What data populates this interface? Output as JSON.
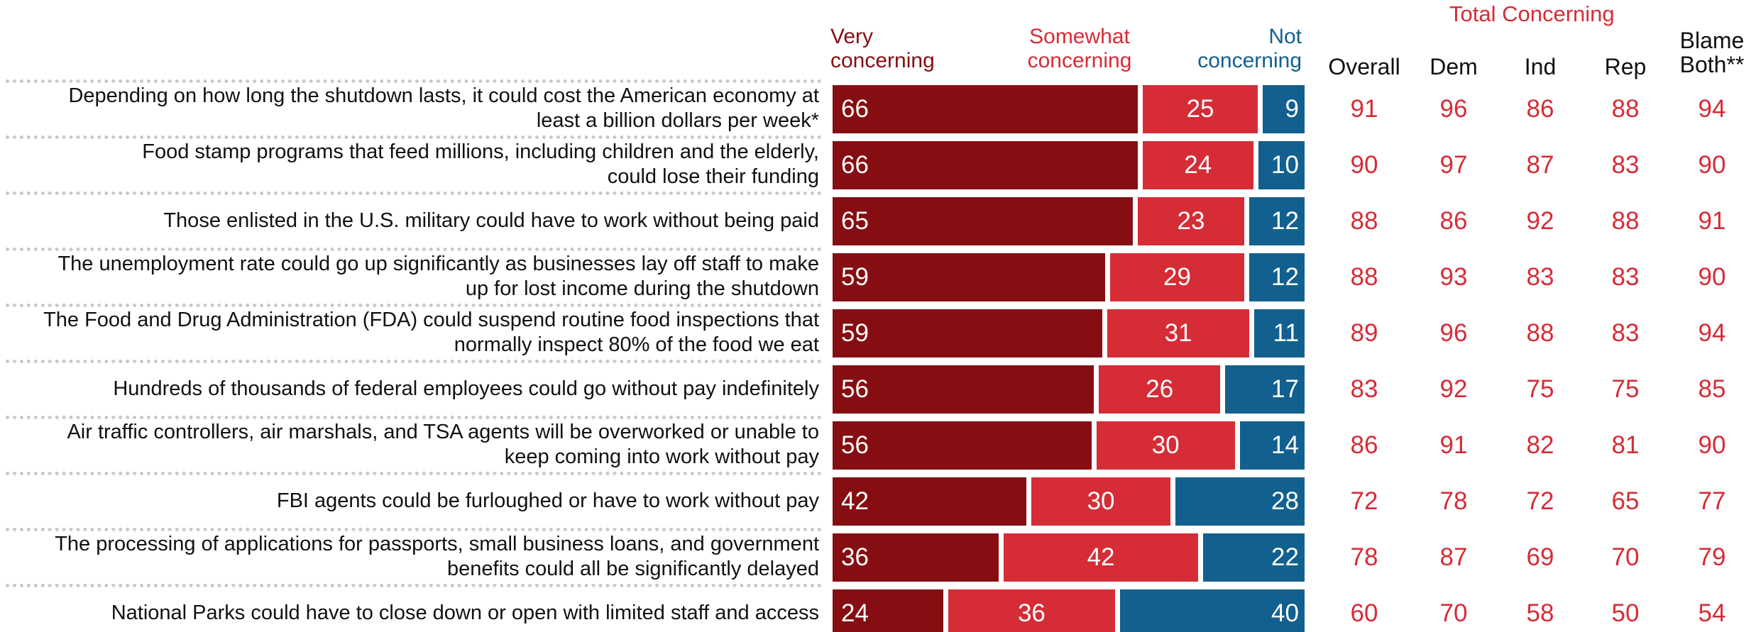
{
  "colors": {
    "very": "#860e12",
    "somewhat": "#d62c36",
    "not": "#11608f",
    "totals": "#d62c36",
    "text": "#111111"
  },
  "chart_data": {
    "type": "bar",
    "orientation": "horizontal",
    "stacked": true,
    "title": "",
    "xlim": [
      0,
      100
    ],
    "legend_placement": "top",
    "categories": [
      "Depending on how long the shutdown lasts, it could cost the American economy at least a billion dollars per week*",
      "Food stamp programs that feed millions, including children and the elderly, could lose their funding",
      "Those enlisted in the U.S. military could have to work without being paid",
      "The unemployment rate could go up significantly as businesses lay off staff to make up for lost income during the shutdown",
      "The Food and Drug Administration (FDA) could suspend routine food inspections that normally inspect 80% of the food we eat",
      "Hundreds of thousands of federal employees could go without pay indefinitely",
      "Air traffic controllers, air marshals, and TSA agents will be overworked or unable to keep coming into work without pay",
      "FBI agents could be furloughed or have to work without pay",
      "The processing of applications for passports, small business loans, and government benefits could all be significantly delayed",
      "National Parks could have to close down or open with limited staff and access"
    ],
    "label_lines": [
      [
        "Depending on how long the shutdown lasts, it could cost the American economy at",
        "least a billion dollars per week*"
      ],
      [
        "Food stamp programs that feed millions, including children and the elderly,",
        "could lose their funding"
      ],
      [
        "Those enlisted in the U.S. military could have to work without being paid"
      ],
      [
        "The unemployment rate could go up significantly as businesses lay off staff to make",
        "up for lost income during the shutdown"
      ],
      [
        "The Food and Drug Administration (FDA) could suspend routine food inspections that",
        "normally inspect 80% of the food we eat"
      ],
      [
        "Hundreds of thousands of federal employees could go without pay indefinitely"
      ],
      [
        "Air traffic controllers, air marshals, and TSA agents will be overworked or unable to",
        "keep coming into work without pay"
      ],
      [
        "FBI agents could be furloughed or have to work without pay"
      ],
      [
        "The processing of applications for passports, small business loans, and government",
        "benefits could all be significantly delayed"
      ],
      [
        "National Parks could have to close down or open with limited staff and access"
      ]
    ],
    "series": [
      {
        "name": "Very concerning",
        "name_lines": [
          "Very",
          "concerning"
        ],
        "values": [
          66,
          66,
          65,
          59,
          59,
          56,
          56,
          42,
          36,
          24
        ]
      },
      {
        "name": "Somewhat concerning",
        "name_lines": [
          "Somewhat",
          "concerning"
        ],
        "values": [
          25,
          24,
          23,
          29,
          31,
          26,
          30,
          30,
          42,
          36
        ]
      },
      {
        "name": "Not concerning",
        "name_lines": [
          "Not",
          "concerning"
        ],
        "values": [
          9,
          10,
          12,
          12,
          11,
          17,
          14,
          28,
          22,
          40
        ]
      }
    ],
    "totals": {
      "title": "Total Concerning",
      "columns": [
        {
          "name": "Overall",
          "name_lines": [
            "Overall"
          ],
          "values": [
            91,
            90,
            88,
            88,
            89,
            83,
            86,
            72,
            78,
            60
          ]
        },
        {
          "name": "Dem",
          "name_lines": [
            "Dem"
          ],
          "values": [
            96,
            97,
            86,
            93,
            96,
            92,
            91,
            78,
            87,
            70
          ]
        },
        {
          "name": "Ind",
          "name_lines": [
            "Ind"
          ],
          "values": [
            86,
            87,
            92,
            83,
            88,
            75,
            82,
            72,
            69,
            58
          ]
        },
        {
          "name": "Rep",
          "name_lines": [
            "Rep"
          ],
          "values": [
            88,
            83,
            88,
            83,
            83,
            75,
            81,
            65,
            70,
            50
          ]
        },
        {
          "name": "Blame Both**",
          "name_lines": [
            "Blame",
            "Both**"
          ],
          "values": [
            94,
            90,
            91,
            90,
            94,
            85,
            90,
            77,
            79,
            54
          ]
        }
      ]
    }
  }
}
